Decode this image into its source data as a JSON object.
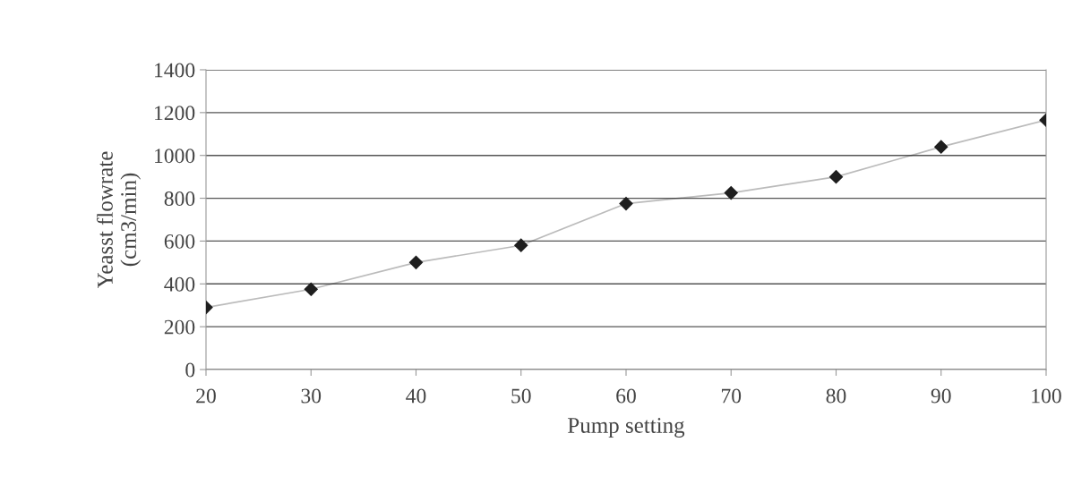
{
  "chart_data": {
    "type": "line",
    "xlabel": "Pump setting",
    "ylabel": "Yeasst flowrate\n(cm3/min)",
    "x": [
      20,
      30,
      40,
      50,
      60,
      70,
      80,
      90,
      100
    ],
    "series": [
      {
        "color": "#1e1e1e",
        "values": [
          290,
          375,
          500,
          580,
          775,
          825,
          900,
          1040,
          1165
        ]
      }
    ],
    "xlim": [
      20,
      100
    ],
    "xticks": [
      20,
      30,
      40,
      50,
      60,
      70,
      80,
      90,
      100
    ],
    "ylim": [
      0,
      1400
    ],
    "yticks": [
      0,
      200,
      400,
      600,
      800,
      1000,
      1200,
      1400
    ],
    "grid": "y",
    "marker": "diamond",
    "line_style": "solid"
  }
}
